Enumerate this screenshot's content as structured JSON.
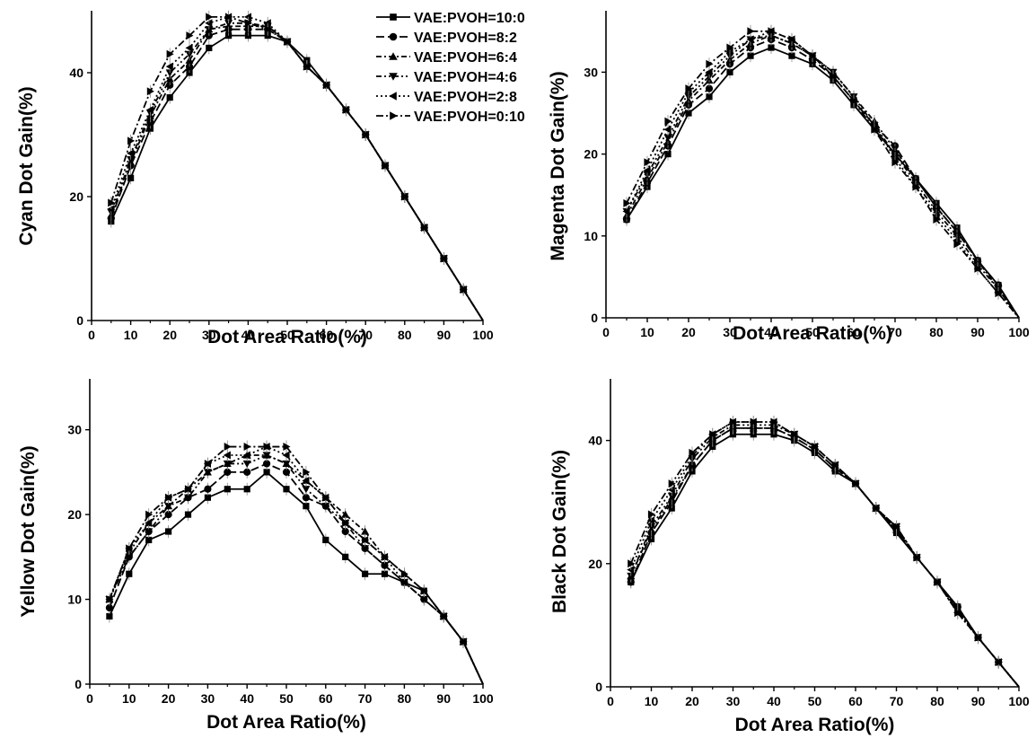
{
  "legend": {
    "entries": [
      "VAE:PVOH=10:0",
      "VAE:PVOH=8:2",
      "VAE:PVOH=6:4",
      "VAE:PVOH=4:6",
      "VAE:PVOH=2:8",
      "VAE:PVOH=0:10"
    ],
    "placement": "top-center"
  },
  "chart_data": [
    {
      "id": "cyan",
      "type": "line",
      "xlabel": "Dot Area Ratio(%)",
      "ylabel": "Cyan Dot Gain(%)",
      "xlim": [
        0,
        100
      ],
      "ylim": [
        0,
        50
      ],
      "xticks": [
        "0",
        "10",
        "20",
        "30",
        "40",
        "50",
        "60",
        "70",
        "80",
        "90",
        "100"
      ],
      "yticks": [
        "0",
        "20",
        "40"
      ],
      "ytick_values": [
        0,
        20,
        40
      ],
      "x": [
        5,
        10,
        15,
        20,
        25,
        30,
        35,
        40,
        45,
        50,
        55,
        60,
        65,
        70,
        75,
        80,
        85,
        90,
        95,
        100
      ],
      "series": [
        {
          "name": "VAE:PVOH=10:0",
          "values": [
            16,
            23,
            31,
            36,
            40,
            44,
            46,
            46,
            46,
            45,
            42,
            38,
            34,
            30,
            25,
            20,
            15,
            10,
            5,
            0
          ]
        },
        {
          "name": "VAE:PVOH=8:2",
          "values": [
            16.5,
            25,
            32,
            38,
            41,
            46,
            47,
            47,
            47,
            45,
            41,
            38,
            34,
            30,
            25,
            20,
            15,
            10,
            5,
            0
          ]
        },
        {
          "name": "VAE:PVOH=6:4",
          "values": [
            17,
            25.5,
            33,
            39,
            42,
            47,
            47.5,
            47.5,
            47.5,
            45,
            41,
            38,
            34,
            30,
            25,
            20,
            15,
            10,
            5,
            0
          ]
        },
        {
          "name": "VAE:PVOH=4:6",
          "values": [
            17.5,
            26,
            33.5,
            40,
            43,
            47,
            48,
            48,
            47.5,
            45,
            41,
            38,
            34,
            30,
            25,
            20,
            15,
            10,
            5,
            0
          ]
        },
        {
          "name": "VAE:PVOH=2:8",
          "values": [
            18,
            27,
            34,
            41,
            44,
            48,
            49,
            49,
            48,
            45,
            41,
            38,
            34,
            30,
            25,
            20,
            15,
            10,
            5,
            0
          ]
        },
        {
          "name": "VAE:PVOH=0:10",
          "values": [
            19,
            29,
            37,
            43,
            46,
            49,
            49,
            48,
            47,
            45,
            41,
            38,
            34,
            30,
            25,
            20,
            15,
            10,
            5,
            0
          ]
        }
      ]
    },
    {
      "id": "magenta",
      "type": "line",
      "xlabel": "Dot Area Ratio(%)",
      "ylabel": "Magenta Dot Gain(%)",
      "xlim": [
        0,
        100
      ],
      "ylim": [
        0,
        37.5
      ],
      "xticks": [
        "0",
        "10",
        "20",
        "30",
        "40",
        "50",
        "60",
        "70",
        "80",
        "90",
        "100"
      ],
      "yticks": [
        "0",
        "10",
        "20",
        "30"
      ],
      "ytick_values": [
        0,
        10,
        20,
        30
      ],
      "x": [
        5,
        10,
        15,
        20,
        25,
        30,
        35,
        40,
        45,
        50,
        55,
        60,
        65,
        70,
        75,
        80,
        85,
        90,
        95,
        100
      ],
      "series": [
        {
          "name": "VAE:PVOH=10:0",
          "values": [
            12,
            16,
            20,
            25,
            27,
            30,
            32,
            33,
            32,
            31,
            29,
            26,
            23,
            20,
            17,
            14,
            11,
            7,
            4,
            0
          ]
        },
        {
          "name": "VAE:PVOH=8:2",
          "values": [
            12,
            16.5,
            21,
            26,
            28,
            31,
            33,
            34,
            33,
            31.5,
            29.5,
            26.5,
            23.5,
            21,
            17,
            13.5,
            10.5,
            7,
            4,
            0
          ]
        },
        {
          "name": "VAE:PVOH=6:4",
          "values": [
            12.5,
            17,
            21.5,
            26.5,
            29,
            31.5,
            33.5,
            34.5,
            33.5,
            32,
            30,
            27,
            24,
            20.5,
            17,
            13.5,
            10.5,
            7,
            3.5,
            0
          ]
        },
        {
          "name": "VAE:PVOH=4:6",
          "values": [
            13,
            17.5,
            22,
            27,
            29.5,
            32,
            34,
            34.5,
            33.5,
            32,
            30,
            27,
            23.5,
            20,
            16.5,
            13,
            10,
            6.5,
            3.5,
            0
          ]
        },
        {
          "name": "VAE:PVOH=2:8",
          "values": [
            13,
            18,
            23,
            27.5,
            30,
            32.5,
            34,
            35,
            34,
            32,
            29.5,
            26.5,
            23.5,
            19.5,
            16,
            12.5,
            9.5,
            6,
            3,
            0
          ]
        },
        {
          "name": "VAE:PVOH=0:10",
          "values": [
            14,
            19,
            24,
            28,
            31,
            33,
            35,
            35,
            34,
            32,
            29.5,
            26.5,
            23,
            19,
            16,
            12,
            9,
            6,
            3,
            0
          ]
        }
      ]
    },
    {
      "id": "yellow",
      "type": "line",
      "xlabel": "Dot Area Ratio(%)",
      "ylabel": "Yellow  Dot Gain(%)",
      "xlim": [
        0,
        100
      ],
      "ylim": [
        0,
        36
      ],
      "xticks": [
        "0",
        "10",
        "20",
        "30",
        "40",
        "50",
        "60",
        "70",
        "80",
        "90",
        "100"
      ],
      "yticks": [
        "0",
        "10",
        "20",
        "30"
      ],
      "ytick_values": [
        0,
        10,
        20,
        30
      ],
      "x": [
        5,
        10,
        15,
        20,
        25,
        30,
        35,
        40,
        45,
        50,
        55,
        60,
        65,
        70,
        75,
        80,
        85,
        90,
        95,
        100
      ],
      "series": [
        {
          "name": "VAE:PVOH=10:0",
          "values": [
            8,
            13,
            17,
            18,
            20,
            22,
            23,
            23,
            25,
            23,
            21,
            17,
            15,
            13,
            13,
            12,
            11,
            8,
            5,
            0
          ]
        },
        {
          "name": "VAE:PVOH=8:2",
          "values": [
            9,
            15,
            18,
            20,
            22,
            23,
            25,
            25,
            26,
            25,
            22,
            21,
            18,
            16,
            14,
            12,
            10,
            8,
            5,
            0
          ]
        },
        {
          "name": "VAE:PVOH=6:4",
          "values": [
            10,
            15.5,
            19,
            21,
            23,
            25,
            26,
            27,
            27,
            26,
            24,
            22,
            20,
            18,
            15,
            13,
            11,
            8,
            5,
            0
          ]
        },
        {
          "name": "VAE:PVOH=4:6",
          "values": [
            10,
            15,
            18,
            21,
            22,
            25,
            26,
            26,
            27,
            26,
            23,
            21,
            19,
            16,
            14,
            12,
            10,
            8,
            5,
            0
          ]
        },
        {
          "name": "VAE:PVOH=2:8",
          "values": [
            10,
            16,
            19,
            22,
            23,
            26,
            27,
            27,
            28,
            27,
            24,
            22,
            19,
            17,
            15,
            12,
            10,
            8,
            5,
            0
          ]
        },
        {
          "name": "VAE:PVOH=0:10",
          "values": [
            10,
            16,
            20,
            22,
            23,
            26,
            28,
            28,
            28,
            28,
            25,
            22,
            19,
            17,
            15,
            13,
            11,
            8,
            5,
            0
          ]
        }
      ]
    },
    {
      "id": "black",
      "type": "line",
      "xlabel": "Dot Area Ratio(%)",
      "ylabel": "Black Dot Gain(%)",
      "xlim": [
        0,
        100
      ],
      "ylim": [
        0,
        50
      ],
      "xticks": [
        "0",
        "10",
        "20",
        "30",
        "40",
        "50",
        "60",
        "70",
        "80",
        "90",
        "100"
      ],
      "yticks": [
        "0",
        "20",
        "40"
      ],
      "ytick_values": [
        0,
        20,
        40
      ],
      "x": [
        5,
        10,
        15,
        20,
        25,
        30,
        35,
        40,
        45,
        50,
        55,
        60,
        65,
        70,
        75,
        80,
        85,
        90,
        95,
        100
      ],
      "series": [
        {
          "name": "VAE:PVOH=10:0",
          "values": [
            17,
            24,
            29,
            35,
            39,
            41,
            41,
            41,
            40,
            38,
            35,
            33,
            29,
            25,
            21,
            17,
            13,
            8,
            4,
            0
          ]
        },
        {
          "name": "VAE:PVOH=8:2",
          "values": [
            17,
            25,
            30,
            36,
            40,
            42,
            42,
            42,
            40.5,
            38.5,
            35.5,
            33,
            29,
            25.5,
            21,
            17,
            13,
            8,
            4,
            0
          ]
        },
        {
          "name": "VAE:PVOH=6:4",
          "values": [
            18,
            25.5,
            30.5,
            36,
            40,
            42,
            42,
            42,
            40.5,
            38.5,
            35.5,
            33,
            29,
            25.5,
            21,
            17,
            12.5,
            8,
            4,
            0
          ]
        },
        {
          "name": "VAE:PVOH=4:6",
          "values": [
            18,
            26,
            31,
            37,
            40.5,
            42.5,
            42.5,
            42.5,
            41,
            39,
            36,
            33,
            29,
            26,
            21,
            17,
            12.5,
            8,
            4,
            0
          ]
        },
        {
          "name": "VAE:PVOH=2:8",
          "values": [
            19,
            27,
            32,
            37.5,
            41,
            43,
            43,
            43,
            41,
            39,
            36,
            33,
            29,
            26,
            21,
            17,
            12,
            8,
            4,
            0
          ]
        },
        {
          "name": "VAE:PVOH=0:10",
          "values": [
            20,
            28,
            33,
            38,
            41,
            43,
            43,
            43,
            41,
            39,
            36,
            33,
            29,
            26,
            21,
            17,
            12,
            8,
            4,
            0
          ]
        }
      ]
    }
  ]
}
